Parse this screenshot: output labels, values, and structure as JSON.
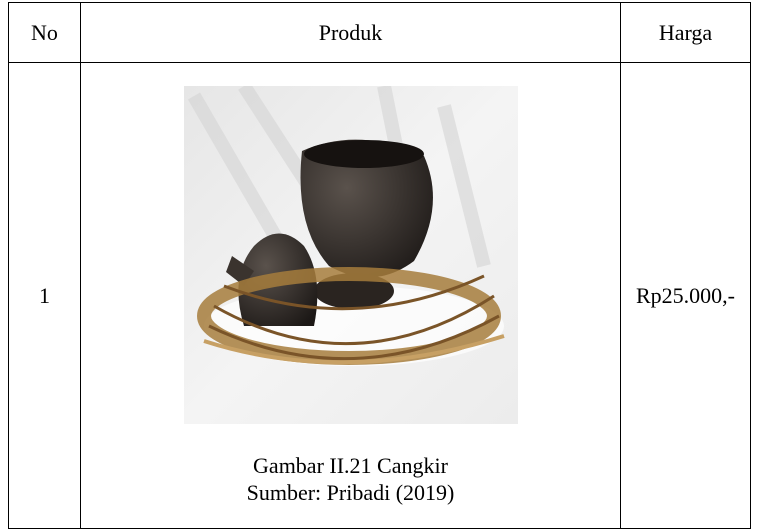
{
  "table": {
    "header": [
      "No",
      "Produk",
      "Harga"
    ],
    "rows": [
      [
        "1",
        {
          "caption": "Gambar II.21 Cangkir",
          "source": "Sumber: Pribadi (2019)"
        },
        "Rp25.000,-"
      ]
    ]
  }
}
